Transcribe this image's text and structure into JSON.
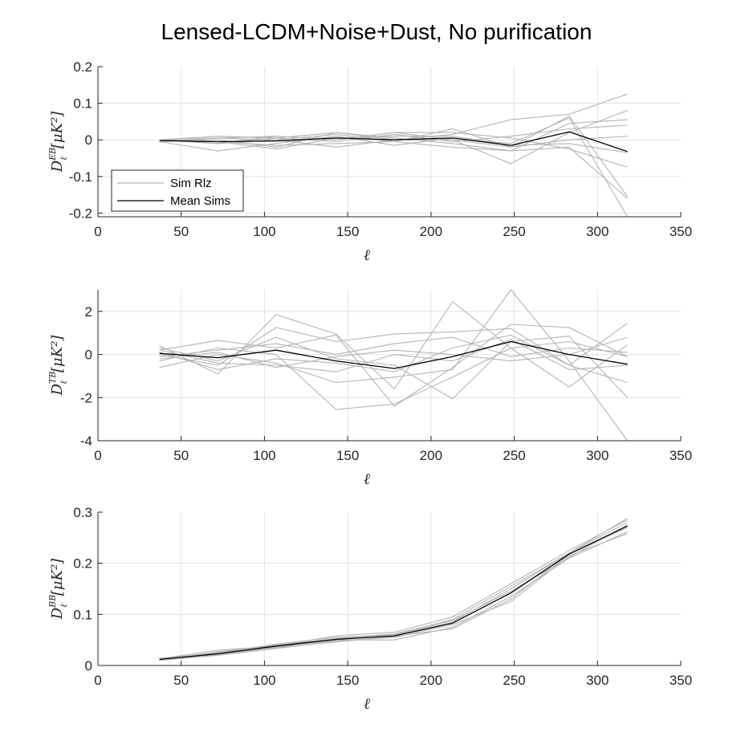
{
  "title": "Lensed-LCDM+Noise+Dust, No purification",
  "colors": {
    "sim": "#b4b4b4",
    "mean": "#000000",
    "grid": "#e3e3e3",
    "axis": "#262626"
  },
  "legend": {
    "position": "bottom-left",
    "entries": [
      {
        "label": "Sim Rlz",
        "color": "#b4b4b4"
      },
      {
        "label": "Mean Sims",
        "color": "#000000"
      }
    ]
  },
  "chart_data": [
    {
      "type": "line",
      "xlabel": "ℓ",
      "ylabel": {
        "main": "D",
        "sub": "ℓ",
        "sup": "EB",
        "unit": "[μK²]"
      },
      "xlim": [
        0,
        350
      ],
      "ylim": [
        -0.21,
        0.2
      ],
      "xticks": [
        0,
        50,
        100,
        150,
        200,
        250,
        300,
        350
      ],
      "yticks": [
        -0.2,
        -0.1,
        0,
        0.1,
        0.2
      ],
      "ytick_labels": [
        "-0.2",
        "-0.1",
        "0",
        "0.1",
        "0.2"
      ],
      "grid": true,
      "x": [
        37,
        72,
        107,
        143,
        178,
        213,
        248,
        283,
        318
      ],
      "series": [
        {
          "name": "Sim Rlz",
          "values": [
            0.0,
            0.01,
            0.005,
            0.02,
            0.0,
            0.015,
            0.055,
            0.07,
            0.125
          ]
        },
        {
          "values": [
            -0.005,
            -0.03,
            -0.01,
            0.01,
            -0.015,
            0.005,
            -0.01,
            0.06,
            -0.21
          ]
        },
        {
          "values": [
            0.0,
            0.005,
            0.01,
            0.0,
            0.02,
            0.0,
            -0.065,
            0.02,
            0.08
          ]
        },
        {
          "values": [
            0.0,
            -0.01,
            0.0,
            0.015,
            -0.005,
            0.03,
            -0.02,
            0.065,
            -0.155
          ]
        },
        {
          "values": [
            -0.005,
            0.0,
            -0.02,
            0.02,
            0.005,
            -0.01,
            -0.03,
            0.045,
            0.055
          ]
        },
        {
          "values": [
            0.0,
            -0.01,
            0.005,
            -0.005,
            0.015,
            -0.005,
            0.01,
            0.03,
            0.04
          ]
        },
        {
          "values": [
            0.0,
            -0.005,
            -0.025,
            0.005,
            0.01,
            0.01,
            -0.015,
            -0.01,
            -0.035
          ]
        },
        {
          "values": [
            0.0,
            -0.01,
            0.01,
            0.0,
            0.02,
            0.02,
            0.005,
            -0.025,
            -0.075
          ]
        },
        {
          "values": [
            -0.005,
            0.005,
            0.0,
            -0.02,
            0.0,
            0.0,
            -0.02,
            0.0,
            0.01
          ]
        },
        {
          "values": [
            0.0,
            -0.005,
            -0.015,
            -0.01,
            -0.005,
            -0.02,
            -0.03,
            -0.02,
            -0.16
          ]
        },
        {
          "name": "Mean Sims",
          "mean": true,
          "values": [
            -0.002,
            -0.005,
            -0.003,
            0.005,
            0.0,
            0.005,
            -0.015,
            0.022,
            -0.032
          ]
        }
      ]
    },
    {
      "type": "line",
      "xlabel": "ℓ",
      "ylabel": {
        "main": "D",
        "sub": "ℓ",
        "sup": "TB",
        "unit": "[μK²]"
      },
      "xlim": [
        0,
        350
      ],
      "ylim": [
        -4,
        3
      ],
      "xticks": [
        0,
        50,
        100,
        150,
        200,
        250,
        300,
        350
      ],
      "yticks": [
        -4,
        -2,
        0,
        2
      ],
      "ytick_labels": [
        "-4",
        "-2",
        "0",
        "2"
      ],
      "grid": true,
      "x": [
        37,
        72,
        107,
        143,
        178,
        213,
        248,
        283,
        318
      ],
      "series": [
        {
          "values": [
            0.4,
            -0.9,
            1.85,
            0.95,
            -1.6,
            2.45,
            0.3,
            0.6,
            -0.1
          ]
        },
        {
          "values": [
            -0.6,
            0.0,
            -0.4,
            -1.3,
            -1.05,
            -0.7,
            3.0,
            -0.3,
            -4.0
          ]
        },
        {
          "values": [
            0.2,
            0.65,
            0.3,
            0.9,
            -2.4,
            -0.6,
            1.4,
            1.25,
            -0.1
          ]
        },
        {
          "values": [
            0.0,
            -0.5,
            1.25,
            0.6,
            0.95,
            1.05,
            1.2,
            -0.5,
            1.45
          ]
        },
        {
          "values": [
            -0.3,
            0.3,
            0.0,
            -2.55,
            -2.3,
            -1.05,
            0.3,
            -1.5,
            0.45
          ]
        },
        {
          "values": [
            0.3,
            -0.3,
            0.8,
            -0.2,
            -0.5,
            -2.05,
            0.6,
            0.85,
            -2.0
          ]
        },
        {
          "values": [
            -0.2,
            0.1,
            -0.6,
            -0.1,
            0.2,
            0.0,
            -0.3,
            0.0,
            0.8
          ]
        },
        {
          "values": [
            0.1,
            -0.7,
            -0.2,
            -0.4,
            -0.8,
            0.3,
            0.9,
            -0.5,
            -1.3
          ]
        },
        {
          "values": [
            -0.1,
            0.2,
            0.5,
            0.0,
            0.5,
            0.8,
            -0.1,
            0.3,
            0.1
          ]
        },
        {
          "values": [
            0.2,
            -0.4,
            -0.5,
            -0.8,
            0.0,
            -0.3,
            0.7,
            -0.7,
            -0.5
          ]
        },
        {
          "mean": true,
          "values": [
            0.05,
            -0.15,
            0.2,
            -0.3,
            -0.65,
            -0.1,
            0.6,
            0.0,
            -0.45
          ]
        }
      ]
    },
    {
      "type": "line",
      "xlabel": "ℓ",
      "ylabel": {
        "main": "D",
        "sub": "ℓ",
        "sup": "BB",
        "unit": "[μK²]"
      },
      "xlim": [
        0,
        350
      ],
      "ylim": [
        0,
        0.3
      ],
      "xticks": [
        0,
        50,
        100,
        150,
        200,
        250,
        300,
        350
      ],
      "yticks": [
        0,
        0.1,
        0.2,
        0.3
      ],
      "ytick_labels": [
        "0",
        "0.1",
        "0.2",
        "0.3"
      ],
      "grid": true,
      "x": [
        37,
        72,
        107,
        143,
        178,
        213,
        248,
        283,
        318
      ],
      "series": [
        {
          "values": [
            0.012,
            0.026,
            0.04,
            0.052,
            0.06,
            0.09,
            0.155,
            0.22,
            0.288
          ]
        },
        {
          "values": [
            0.01,
            0.02,
            0.033,
            0.048,
            0.055,
            0.08,
            0.125,
            0.215,
            0.258
          ]
        },
        {
          "values": [
            0.013,
            0.03,
            0.038,
            0.058,
            0.065,
            0.095,
            0.16,
            0.225,
            0.285
          ]
        },
        {
          "values": [
            0.011,
            0.022,
            0.036,
            0.05,
            0.05,
            0.075,
            0.135,
            0.21,
            0.262
          ]
        },
        {
          "values": [
            0.014,
            0.024,
            0.042,
            0.055,
            0.06,
            0.085,
            0.15,
            0.22,
            0.28
          ]
        },
        {
          "values": [
            0.012,
            0.021,
            0.035,
            0.046,
            0.057,
            0.072,
            0.13,
            0.218,
            0.27
          ]
        },
        {
          "values": [
            0.01,
            0.027,
            0.039,
            0.053,
            0.062,
            0.088,
            0.145,
            0.212,
            0.275
          ]
        },
        {
          "mean": true,
          "values": [
            0.012,
            0.023,
            0.038,
            0.051,
            0.058,
            0.083,
            0.142,
            0.218,
            0.273
          ]
        }
      ]
    }
  ]
}
